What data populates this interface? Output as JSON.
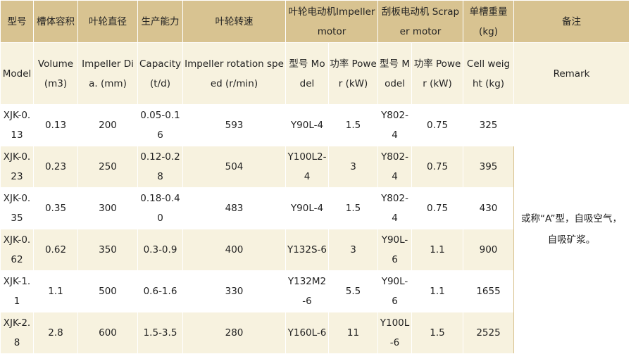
{
  "header_cn": {
    "model": "型号",
    "volume": "槽体容积",
    "impeller_dia": "叶轮直径",
    "capacity": "生产能力",
    "rotation": "叶轮转速",
    "impeller_motor": "叶轮电动机Impeller motor",
    "scraper_motor": "刮板电动机 Scraper motor",
    "cell_weight": "单槽重量 (kg)",
    "remark": "备注"
  },
  "header_en": {
    "model": "Model",
    "volume": "Volume (m3)",
    "impeller_dia": "Impeller Dia. (mm)",
    "capacity": "Capacity (t/d)",
    "rotation": "Impeller rotation speed (r/min)",
    "imp_model": "型号 Model",
    "imp_power": "功率 Power (kW)",
    "scr_model": "型号 Model",
    "scr_power": "功率 Power (kW)",
    "cell_weight": "Cell weight (kg)",
    "remark": "Remark"
  },
  "rows": [
    {
      "model": "XJK-0.13",
      "volume": "0.13",
      "dia": "200",
      "capacity": "0.05-0.16",
      "rotation": "593",
      "imp_model": "Y90L-4",
      "imp_power": "1.5",
      "scr_model": "Y802-4",
      "scr_power": "0.75",
      "weight": "325"
    },
    {
      "model": "XJK-0.23",
      "volume": "0.23",
      "dia": "250",
      "capacity": "0.12-0.28",
      "rotation": "504",
      "imp_model": "Y100L2-4",
      "imp_power": "3",
      "scr_model": "Y802-4",
      "scr_power": "0.75",
      "weight": "395"
    },
    {
      "model": "XJK-0.35",
      "volume": "0.35",
      "dia": "300",
      "capacity": "0.18-0.40",
      "rotation": "483",
      "imp_model": "Y90L-4",
      "imp_power": "1.5",
      "scr_model": "Y802-4",
      "scr_power": "0.75",
      "weight": "430"
    },
    {
      "model": "XJK-0.62",
      "volume": "0.62",
      "dia": "350",
      "capacity": "0.3-0.9",
      "rotation": "400",
      "imp_model": "Y132S-6",
      "imp_power": "3",
      "scr_model": "Y90L-6",
      "scr_power": "1.1",
      "weight": "900"
    },
    {
      "model": "XJK-1.1",
      "volume": "1.1",
      "dia": "500",
      "capacity": "0.6-1.6",
      "rotation": "330",
      "imp_model": "Y132M2-6",
      "imp_power": "5.5",
      "scr_model": "Y90L-6",
      "scr_power": "1.1",
      "weight": "1655"
    },
    {
      "model": "XJK-2.8",
      "volume": "2.8",
      "dia": "600",
      "capacity": "1.5-3.5",
      "rotation": "280",
      "imp_model": "Y160L-6",
      "imp_power": "11",
      "scr_model": "Y100L-6",
      "scr_power": "1.5",
      "weight": "2525"
    }
  ],
  "remark_text": "或称“A”型，自吸空气，自吸矿浆。"
}
